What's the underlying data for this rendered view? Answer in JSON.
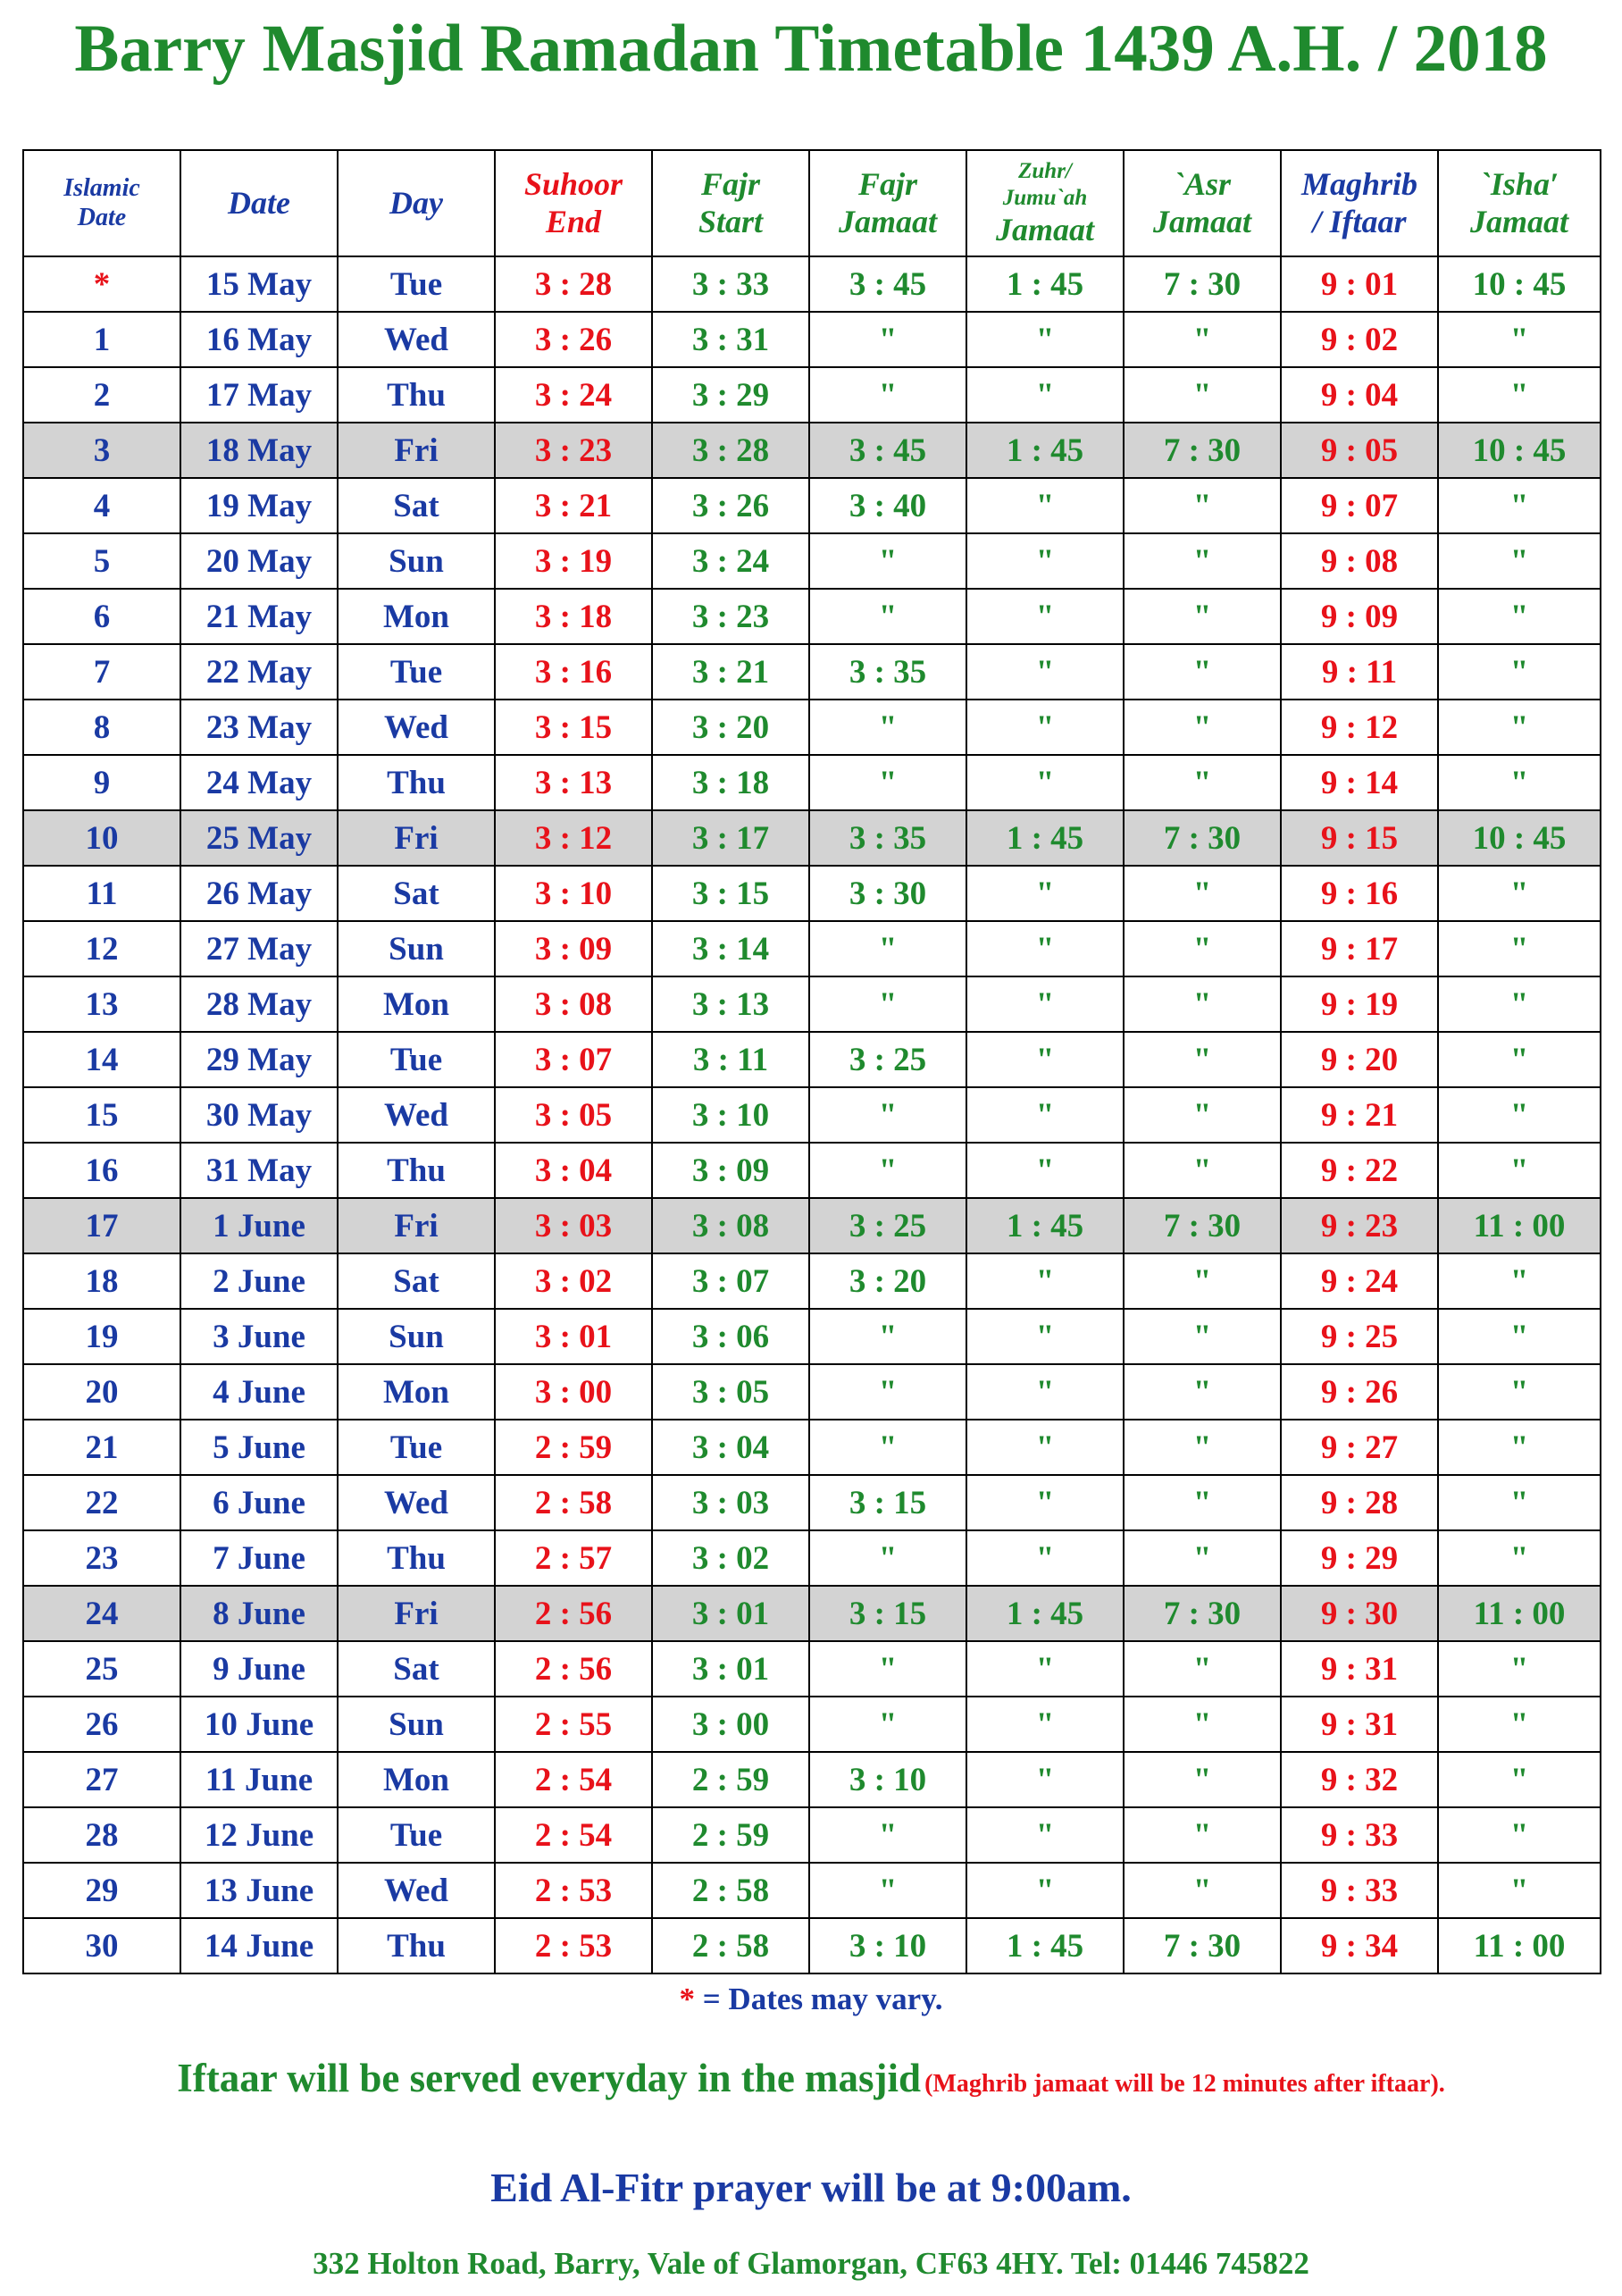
{
  "title": "Barry Masjid Ramadan Timetable 1439 A.H. / 2018",
  "colors": {
    "blue": "#1a3aa3",
    "green": "#1f8a2e",
    "red": "#e8121a",
    "highlight_row": "#d3d3d3"
  },
  "headers": [
    [
      "Islamic",
      "Date"
    ],
    [
      "Date"
    ],
    [
      "Day"
    ],
    [
      "Suhoor",
      "End"
    ],
    [
      "Fajr",
      "Start"
    ],
    [
      "Fajr",
      "Jamaat"
    ],
    [
      "Zuhr/",
      "Jumu`ah",
      "Jamaat"
    ],
    [
      "`Asr",
      "Jamaat"
    ],
    [
      "Maghrib",
      "/ Iftaar"
    ],
    [
      "`Isha′",
      "Jamaat"
    ]
  ],
  "rows": [
    [
      "*",
      "15 May",
      "Tue",
      "3 : 28",
      "3 : 33",
      "3 : 45",
      "1 : 45",
      "7 : 30",
      "9 : 01",
      "10 : 45"
    ],
    [
      "1",
      "16 May",
      "Wed",
      "3 : 26",
      "3 : 31",
      "\"",
      "\"",
      "\"",
      "9 : 02",
      "\""
    ],
    [
      "2",
      "17 May",
      "Thu",
      "3 : 24",
      "3 : 29",
      "\"",
      "\"",
      "\"",
      "9 : 04",
      "\""
    ],
    [
      "3",
      "18 May",
      "Fri",
      "3 : 23",
      "3 : 28",
      "3 : 45",
      "1 : 45",
      "7 : 30",
      "9 : 05",
      "10 : 45"
    ],
    [
      "4",
      "19 May",
      "Sat",
      "3 : 21",
      "3 : 26",
      "3 : 40",
      "\"",
      "\"",
      "9 : 07",
      "\""
    ],
    [
      "5",
      "20 May",
      "Sun",
      "3 : 19",
      "3 : 24",
      "\"",
      "\"",
      "\"",
      "9 : 08",
      "\""
    ],
    [
      "6",
      "21 May",
      "Mon",
      "3 : 18",
      "3 : 23",
      "\"",
      "\"",
      "\"",
      "9 : 09",
      "\""
    ],
    [
      "7",
      "22 May",
      "Tue",
      "3 : 16",
      "3 : 21",
      "3 : 35",
      "\"",
      "\"",
      "9 : 11",
      "\""
    ],
    [
      "8",
      "23 May",
      "Wed",
      "3 : 15",
      "3 : 20",
      "\"",
      "\"",
      "\"",
      "9 : 12",
      "\""
    ],
    [
      "9",
      "24 May",
      "Thu",
      "3 : 13",
      "3 : 18",
      "\"",
      "\"",
      "\"",
      "9 : 14",
      "\""
    ],
    [
      "10",
      "25 May",
      "Fri",
      "3 : 12",
      "3 : 17",
      "3 : 35",
      "1 : 45",
      "7 : 30",
      "9 : 15",
      "10 : 45"
    ],
    [
      "11",
      "26 May",
      "Sat",
      "3 : 10",
      "3 : 15",
      "3 : 30",
      "\"",
      "\"",
      "9 : 16",
      "\""
    ],
    [
      "12",
      "27 May",
      "Sun",
      "3 : 09",
      "3 : 14",
      "\"",
      "\"",
      "\"",
      "9 : 17",
      "\""
    ],
    [
      "13",
      "28 May",
      "Mon",
      "3 : 08",
      "3 : 13",
      "\"",
      "\"",
      "\"",
      "9 : 19",
      "\""
    ],
    [
      "14",
      "29 May",
      "Tue",
      "3 : 07",
      "3 : 11",
      "3 : 25",
      "\"",
      "\"",
      "9 : 20",
      "\""
    ],
    [
      "15",
      "30 May",
      "Wed",
      "3 : 05",
      "3 : 10",
      "\"",
      "\"",
      "\"",
      "9 : 21",
      "\""
    ],
    [
      "16",
      "31 May",
      "Thu",
      "3 : 04",
      "3 : 09",
      "\"",
      "\"",
      "\"",
      "9 : 22",
      "\""
    ],
    [
      "17",
      "1 June",
      "Fri",
      "3 : 03",
      "3 : 08",
      "3 : 25",
      "1 : 45",
      "7 : 30",
      "9 : 23",
      "11 : 00"
    ],
    [
      "18",
      "2 June",
      "Sat",
      "3 : 02",
      "3 : 07",
      "3 : 20",
      "\"",
      "\"",
      "9 : 24",
      "\""
    ],
    [
      "19",
      "3 June",
      "Sun",
      "3 : 01",
      "3 : 06",
      "\"",
      "\"",
      "\"",
      "9 : 25",
      "\""
    ],
    [
      "20",
      "4 June",
      "Mon",
      "3 : 00",
      "3 : 05",
      "\"",
      "\"",
      "\"",
      "9 : 26",
      "\""
    ],
    [
      "21",
      "5 June",
      "Tue",
      "2 : 59",
      "3 : 04",
      "\"",
      "\"",
      "\"",
      "9 : 27",
      "\""
    ],
    [
      "22",
      "6 June",
      "Wed",
      "2 : 58",
      "3 : 03",
      "3 : 15",
      "\"",
      "\"",
      "9 : 28",
      "\""
    ],
    [
      "23",
      "7 June",
      "Thu",
      "2 : 57",
      "3 : 02",
      "\"",
      "\"",
      "\"",
      "9 : 29",
      "\""
    ],
    [
      "24",
      "8 June",
      "Fri",
      "2 : 56",
      "3 : 01",
      "3 : 15",
      "1 : 45",
      "7 : 30",
      "9 : 30",
      "11 : 00"
    ],
    [
      "25",
      "9 June",
      "Sat",
      "2 : 56",
      "3 : 01",
      "\"",
      "\"",
      "\"",
      "9 : 31",
      "\""
    ],
    [
      "26",
      "10 June",
      "Sun",
      "2 : 55",
      "3 : 00",
      "\"",
      "\"",
      "\"",
      "9 : 31",
      "\""
    ],
    [
      "27",
      "11 June",
      "Mon",
      "2 : 54",
      "2 : 59",
      "3 : 10",
      "\"",
      "\"",
      "9 : 32",
      "\""
    ],
    [
      "28",
      "12 June",
      "Tue",
      "2 : 54",
      "2 : 59",
      "\"",
      "\"",
      "\"",
      "9 : 33",
      "\""
    ],
    [
      "29",
      "13 June",
      "Wed",
      "2 : 53",
      "2 : 58",
      "\"",
      "\"",
      "\"",
      "9 : 33",
      "\""
    ],
    [
      "30",
      "14 June",
      "Thu",
      "2 : 53",
      "2 : 58",
      "3 : 10",
      "1 : 45",
      "7 : 30",
      "9 : 34",
      "11 : 00"
    ]
  ],
  "note": {
    "star": "*",
    "text": " = Dates may vary."
  },
  "iftaar": {
    "main": "Iftaar will be served everyday in the masjid",
    "aside": "(Maghrib jamaat will be 12 minutes after iftaar)."
  },
  "eid": "Eid Al-Fitr prayer will be at 9:00am.",
  "address": "332 Holton Road, Barry, Vale of Glamorgan, CF63 4HY. Tel: 01446 745822"
}
